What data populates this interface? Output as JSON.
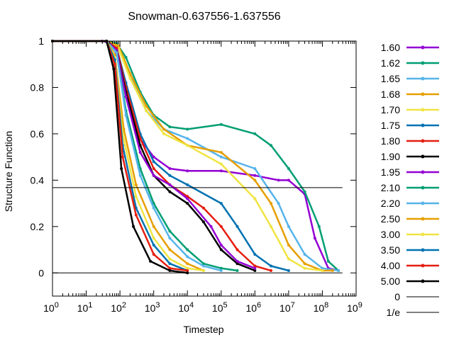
{
  "chart_data": {
    "type": "line",
    "title": "Snowman-0.637556-1.637556",
    "xlabel": "Timestep",
    "ylabel": "Structure Function",
    "xscale": "log",
    "xlim": [
      1,
      1000000000
    ],
    "ylim": [
      -0.1,
      1
    ],
    "grid": false,
    "legend_position": "outside-right",
    "x_ticks": [
      {
        "value": 1,
        "base": "10",
        "exp": "0"
      },
      {
        "value": 10,
        "base": "10",
        "exp": "1"
      },
      {
        "value": 100,
        "base": "10",
        "exp": "2"
      },
      {
        "value": 1000,
        "base": "10",
        "exp": "3"
      },
      {
        "value": 10000,
        "base": "10",
        "exp": "4"
      },
      {
        "value": 100000,
        "base": "10",
        "exp": "5"
      },
      {
        "value": 1000000,
        "base": "10",
        "exp": "6"
      },
      {
        "value": 10000000,
        "base": "10",
        "exp": "7"
      },
      {
        "value": 100000000,
        "base": "10",
        "exp": "8"
      },
      {
        "value": 1000000000,
        "base": "10",
        "exp": "9"
      }
    ],
    "y_ticks": [
      {
        "value": 0,
        "label": "0"
      },
      {
        "value": 0.2,
        "label": "0.2"
      },
      {
        "value": 0.4,
        "label": "0.4"
      },
      {
        "value": 0.6,
        "label": "0.6"
      },
      {
        "value": 0.8,
        "label": "0.8"
      },
      {
        "value": 1,
        "label": "1"
      }
    ],
    "series": [
      {
        "name": "1.60",
        "color": "#9400d3",
        "points": [
          [
            1,
            1
          ],
          [
            30,
            1
          ],
          [
            60,
            0.99
          ],
          [
            100,
            0.9
          ],
          [
            300,
            0.6
          ],
          [
            1000,
            0.5
          ],
          [
            3000,
            0.45
          ],
          [
            10000,
            0.44
          ],
          [
            100000,
            0.44
          ],
          [
            1000000,
            0.42
          ],
          [
            5000000,
            0.4
          ],
          [
            10000000,
            0.4
          ],
          [
            30000000,
            0.34
          ],
          [
            60000000,
            0.15
          ],
          [
            150000000,
            0.02
          ],
          [
            300000000,
            0.01
          ]
        ]
      },
      {
        "name": "1.62",
        "color": "#009e73",
        "points": [
          [
            1,
            1
          ],
          [
            40,
            1
          ],
          [
            80,
            0.99
          ],
          [
            150,
            0.93
          ],
          [
            400,
            0.78
          ],
          [
            1000,
            0.68
          ],
          [
            3000,
            0.63
          ],
          [
            10000,
            0.62
          ],
          [
            100000,
            0.64
          ],
          [
            1000000,
            0.6
          ],
          [
            3000000,
            0.55
          ],
          [
            10000000,
            0.45
          ],
          [
            30000000,
            0.35
          ],
          [
            80000000,
            0.2
          ],
          [
            150000000,
            0.05
          ],
          [
            300000000,
            0.01
          ]
        ]
      },
      {
        "name": "1.65",
        "color": "#56b4e9",
        "points": [
          [
            1,
            1
          ],
          [
            40,
            1
          ],
          [
            90,
            0.98
          ],
          [
            200,
            0.85
          ],
          [
            600,
            0.7
          ],
          [
            2000,
            0.62
          ],
          [
            10000,
            0.58
          ],
          [
            100000,
            0.5
          ],
          [
            1000000,
            0.45
          ],
          [
            5000000,
            0.3
          ],
          [
            10000000,
            0.2
          ],
          [
            30000000,
            0.08
          ],
          [
            100000000,
            0.02
          ],
          [
            300000000,
            0.01
          ]
        ]
      },
      {
        "name": "1.68",
        "color": "#e69f00",
        "points": [
          [
            1,
            1
          ],
          [
            40,
            1
          ],
          [
            90,
            0.98
          ],
          [
            200,
            0.86
          ],
          [
            600,
            0.72
          ],
          [
            2000,
            0.62
          ],
          [
            10000,
            0.55
          ],
          [
            100000,
            0.52
          ],
          [
            1000000,
            0.4
          ],
          [
            3000000,
            0.3
          ],
          [
            10000000,
            0.12
          ],
          [
            30000000,
            0.04
          ],
          [
            100000000,
            0.01
          ],
          [
            200000000,
            0.01
          ]
        ]
      },
      {
        "name": "1.70",
        "color": "#f0e442",
        "points": [
          [
            1,
            1
          ],
          [
            40,
            1
          ],
          [
            90,
            0.97
          ],
          [
            200,
            0.84
          ],
          [
            600,
            0.7
          ],
          [
            2000,
            0.6
          ],
          [
            10000,
            0.55
          ],
          [
            100000,
            0.47
          ],
          [
            1000000,
            0.32
          ],
          [
            3000000,
            0.2
          ],
          [
            10000000,
            0.06
          ],
          [
            30000000,
            0.02
          ],
          [
            100000000,
            0.01
          ]
        ]
      },
      {
        "name": "1.75",
        "color": "#0072b2",
        "points": [
          [
            1,
            1
          ],
          [
            40,
            1
          ],
          [
            80,
            0.97
          ],
          [
            150,
            0.82
          ],
          [
            400,
            0.6
          ],
          [
            1000,
            0.48
          ],
          [
            3000,
            0.42
          ],
          [
            10000,
            0.38
          ],
          [
            100000,
            0.3
          ],
          [
            300000,
            0.2
          ],
          [
            1000000,
            0.08
          ],
          [
            3000000,
            0.03
          ],
          [
            10000000,
            0.01
          ]
        ]
      },
      {
        "name": "1.80",
        "color": "#e51e10",
        "points": [
          [
            1,
            1
          ],
          [
            40,
            1
          ],
          [
            80,
            0.97
          ],
          [
            150,
            0.8
          ],
          [
            400,
            0.58
          ],
          [
            1000,
            0.45
          ],
          [
            3000,
            0.38
          ],
          [
            10000,
            0.33
          ],
          [
            30000,
            0.28
          ],
          [
            100000,
            0.2
          ],
          [
            300000,
            0.1
          ],
          [
            1000000,
            0.03
          ],
          [
            3000000,
            0.01
          ]
        ]
      },
      {
        "name": "1.90",
        "color": "#000000",
        "points": [
          [
            1,
            1
          ],
          [
            40,
            1
          ],
          [
            80,
            0.96
          ],
          [
            150,
            0.78
          ],
          [
            400,
            0.55
          ],
          [
            1000,
            0.42
          ],
          [
            3000,
            0.35
          ],
          [
            10000,
            0.3
          ],
          [
            30000,
            0.22
          ],
          [
            100000,
            0.1
          ],
          [
            300000,
            0.04
          ],
          [
            1000000,
            0.01
          ]
        ]
      },
      {
        "name": "1.95",
        "color": "#9400d3",
        "points": [
          [
            1,
            1
          ],
          [
            40,
            1
          ],
          [
            80,
            0.96
          ],
          [
            150,
            0.76
          ],
          [
            400,
            0.52
          ],
          [
            1000,
            0.42
          ],
          [
            3000,
            0.38
          ],
          [
            10000,
            0.32
          ],
          [
            50000,
            0.2
          ],
          [
            100000,
            0.12
          ],
          [
            300000,
            0.05
          ],
          [
            1000000,
            0.02
          ]
        ]
      },
      {
        "name": "2.10",
        "color": "#009e73",
        "points": [
          [
            1,
            1
          ],
          [
            40,
            1
          ],
          [
            80,
            0.95
          ],
          [
            150,
            0.7
          ],
          [
            400,
            0.45
          ],
          [
            1000,
            0.3
          ],
          [
            3000,
            0.18
          ],
          [
            10000,
            0.1
          ],
          [
            30000,
            0.04
          ],
          [
            100000,
            0.02
          ],
          [
            300000,
            0.01
          ]
        ]
      },
      {
        "name": "2.20",
        "color": "#56b4e9",
        "points": [
          [
            1,
            1
          ],
          [
            40,
            1
          ],
          [
            80,
            0.95
          ],
          [
            150,
            0.68
          ],
          [
            400,
            0.42
          ],
          [
            1000,
            0.28
          ],
          [
            3000,
            0.15
          ],
          [
            10000,
            0.07
          ],
          [
            30000,
            0.03
          ],
          [
            100000,
            0.01
          ]
        ]
      },
      {
        "name": "2.50",
        "color": "#e69f00",
        "points": [
          [
            1,
            1
          ],
          [
            40,
            1
          ],
          [
            70,
            0.94
          ],
          [
            130,
            0.62
          ],
          [
            300,
            0.38
          ],
          [
            1000,
            0.2
          ],
          [
            3000,
            0.1
          ],
          [
            10000,
            0.04
          ],
          [
            30000,
            0.01
          ]
        ]
      },
      {
        "name": "3.00",
        "color": "#f0e442",
        "points": [
          [
            1,
            1
          ],
          [
            40,
            1
          ],
          [
            70,
            0.93
          ],
          [
            120,
            0.6
          ],
          [
            300,
            0.33
          ],
          [
            1000,
            0.15
          ],
          [
            3000,
            0.06
          ],
          [
            10000,
            0.02
          ],
          [
            30000,
            0.01
          ]
        ]
      },
      {
        "name": "3.50",
        "color": "#0072b2",
        "points": [
          [
            1,
            1
          ],
          [
            40,
            1
          ],
          [
            70,
            0.92
          ],
          [
            120,
            0.55
          ],
          [
            300,
            0.28
          ],
          [
            1000,
            0.12
          ],
          [
            3000,
            0.04
          ],
          [
            10000,
            0.01
          ]
        ]
      },
      {
        "name": "4.00",
        "color": "#e51e10",
        "points": [
          [
            1,
            1
          ],
          [
            40,
            1
          ],
          [
            70,
            0.9
          ],
          [
            120,
            0.5
          ],
          [
            300,
            0.25
          ],
          [
            1000,
            0.08
          ],
          [
            3000,
            0.02
          ],
          [
            10000,
            0.01
          ]
        ]
      },
      {
        "name": "5.00",
        "color": "#000000",
        "points": [
          [
            1,
            1
          ],
          [
            40,
            1
          ],
          [
            65,
            0.88
          ],
          [
            110,
            0.45
          ],
          [
            250,
            0.2
          ],
          [
            800,
            0.05
          ],
          [
            3000,
            0.01
          ],
          [
            10000,
            0.0
          ]
        ]
      }
    ],
    "reference_lines": [
      {
        "name": "0",
        "value": 0,
        "color": "#000000"
      },
      {
        "name": "1/e",
        "value": 0.367879,
        "color": "#000000"
      }
    ]
  }
}
